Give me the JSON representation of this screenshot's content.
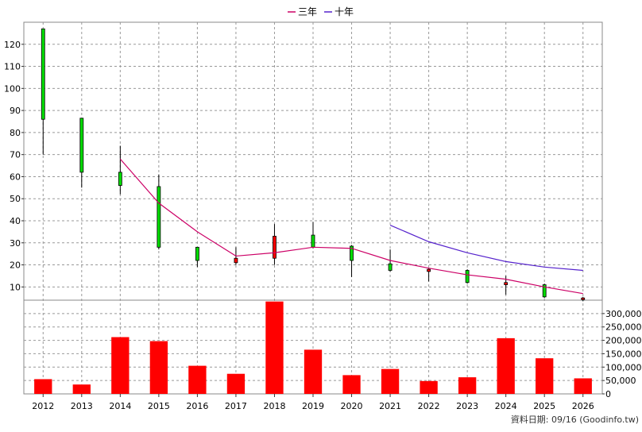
{
  "legend": [
    {
      "name": "三年",
      "color": "#cc0066"
    },
    {
      "name": "十年",
      "color": "#5522cc"
    }
  ],
  "footer": "資料日期: 09/16 (Goodinfo.tw)",
  "chart_data": [
    {
      "type": "candlestick",
      "role": "price-panel",
      "categories": [
        "2012",
        "2013",
        "2014",
        "2015",
        "2016",
        "2017",
        "2018",
        "2019",
        "2020",
        "2021",
        "2022",
        "2023",
        "2024",
        "2025",
        "2026"
      ],
      "ohlc": [
        {
          "open": 86,
          "close": 127,
          "high": 127,
          "low": 70,
          "color": "green"
        },
        {
          "open": 62,
          "close": 86.5,
          "high": 86.5,
          "low": 55,
          "color": "green"
        },
        {
          "open": 56,
          "close": 62,
          "high": 74,
          "low": 52,
          "color": "green"
        },
        {
          "open": 28,
          "close": 55.5,
          "high": 61,
          "low": 27,
          "color": "green"
        },
        {
          "open": 22,
          "close": 28,
          "high": 28,
          "low": 19,
          "color": "green"
        },
        {
          "open": 21,
          "close": 23,
          "high": 28,
          "low": 20,
          "color": "red"
        },
        {
          "open": 23,
          "close": 33,
          "high": 38.5,
          "low": 20,
          "color": "red"
        },
        {
          "open": 28,
          "close": 33.5,
          "high": 39.5,
          "low": 27.5,
          "color": "green"
        },
        {
          "open": 22,
          "close": 28.5,
          "high": 29,
          "low": 14.5,
          "color": "green"
        },
        {
          "open": 17.5,
          "close": 20.5,
          "high": 27,
          "low": 17,
          "color": "green"
        },
        {
          "open": 17,
          "close": 18,
          "high": 18.5,
          "low": 12.5,
          "color": "red"
        },
        {
          "open": 12,
          "close": 17.5,
          "high": 18,
          "low": 11.5,
          "color": "green"
        },
        {
          "open": 11,
          "close": 12,
          "high": 15,
          "low": 6.5,
          "color": "red"
        },
        {
          "open": 5.5,
          "close": 11,
          "high": 11.5,
          "low": 5,
          "color": "green"
        },
        {
          "open": 4.5,
          "close": 5,
          "high": 5.5,
          "low": 3.5,
          "color": "red"
        }
      ],
      "series": [
        {
          "name": "三年",
          "color": "#cc0066",
          "x": [
            "2014",
            "2015",
            "2016",
            "2017",
            "2018",
            "2019",
            "2020",
            "2021",
            "2022",
            "2023",
            "2024",
            "2025",
            "2026"
          ],
          "values": [
            68,
            48,
            35,
            24,
            25.5,
            28,
            27.5,
            22,
            18.5,
            15.5,
            13.5,
            10,
            7
          ]
        },
        {
          "name": "十年",
          "color": "#5522cc",
          "x": [
            "2021",
            "2022",
            "2023",
            "2024",
            "2025",
            "2026"
          ],
          "values": [
            38,
            30.5,
            25.5,
            21.5,
            19,
            17.5
          ]
        }
      ],
      "yticks": [
        10,
        20,
        30,
        40,
        50,
        60,
        70,
        80,
        90,
        100,
        110,
        120
      ],
      "ylim": [
        4,
        130
      ],
      "grid": true
    },
    {
      "type": "bar",
      "role": "volume-panel",
      "categories": [
        "2012",
        "2013",
        "2014",
        "2015",
        "2016",
        "2017",
        "2018",
        "2019",
        "2020",
        "2021",
        "2022",
        "2023",
        "2024",
        "2025",
        "2026"
      ],
      "values": [
        55000,
        35000,
        212000,
        197000,
        105000,
        75000,
        345000,
        165000,
        70000,
        93000,
        48000,
        62000,
        208000,
        133000,
        58000
      ],
      "color": "#ff0000",
      "yticks": [
        "0",
        "50,000",
        "100,000",
        "150,000",
        "200,000",
        "250,000",
        "300,000"
      ],
      "ytick_values": [
        0,
        50000,
        100000,
        150000,
        200000,
        250000,
        300000
      ],
      "ylim": [
        0,
        350000
      ],
      "grid": true
    }
  ]
}
